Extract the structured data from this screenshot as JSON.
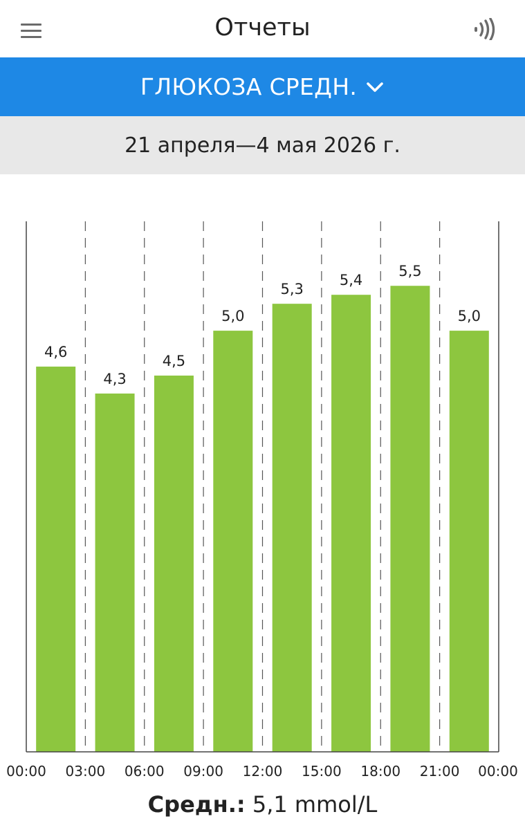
{
  "header": {
    "title": "Отчеты",
    "menu_icon": "hamburger-menu-icon",
    "nfc_icon": "nfc-signal-icon"
  },
  "report_selector": {
    "label": "ГЛЮКОЗА СРЕДН.",
    "icon": "chevron-down-icon"
  },
  "date_range": "21 апреля—4 мая 2026 г.",
  "colors": {
    "accent": "#1e88e5",
    "bar": "#8dc63f",
    "date_bar_bg": "#e8e8e8"
  },
  "chart_data": {
    "type": "bar",
    "title": "",
    "xlabel": "",
    "ylabel": "",
    "ylim": [
      0,
      6.0
    ],
    "grid": "vertical-dashed",
    "x_ticks": [
      "00:00",
      "03:00",
      "06:00",
      "09:00",
      "12:00",
      "15:00",
      "18:00",
      "21:00",
      "00:00"
    ],
    "values": [
      4.6,
      4.3,
      4.5,
      5.0,
      5.3,
      5.4,
      5.5,
      5.0
    ],
    "value_labels": [
      "4,6",
      "4,3",
      "4,5",
      "5,0",
      "5,3",
      "5,4",
      "5,5",
      "5,0"
    ]
  },
  "summary": {
    "label": "Средн.:",
    "value": "5,1 mmol/L"
  }
}
